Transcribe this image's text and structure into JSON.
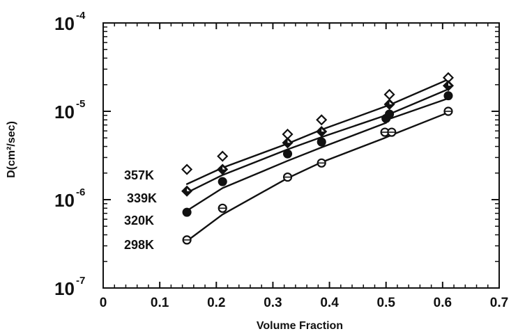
{
  "chart_data": {
    "type": "scatter",
    "xlabel": "Volume Fraction",
    "ylabel": "D(cm²/sec)",
    "xlim": [
      0,
      0.7
    ],
    "ylim": [
      1e-07,
      0.0001
    ],
    "yscale": "log",
    "x_ticks": [
      "0",
      "0.1",
      "0.2",
      "0.3",
      "0.4",
      "0.5",
      "0.6",
      "0.7"
    ],
    "y_ticks": [
      {
        "base": "10",
        "exp": "-4",
        "value": 0.0001
      },
      {
        "base": "10",
        "exp": "-5",
        "value": 1e-05
      },
      {
        "base": "10",
        "exp": "-6",
        "value": 1e-06
      },
      {
        "base": "10",
        "exp": "-7",
        "value": 1e-07
      }
    ],
    "grid": false,
    "series": [
      {
        "name": "357K",
        "marker": "open-diamond",
        "points": [
          [
            0.148,
            2.2e-06
          ],
          [
            0.211,
            3.1e-06
          ],
          [
            0.326,
            5.5e-06
          ],
          [
            0.386,
            8e-06
          ],
          [
            0.506,
            1.55e-05
          ],
          [
            0.61,
            2.4e-05
          ]
        ],
        "fit": [
          1.5e-06,
          2.3e-06,
          4.3e-06,
          6.2e-06,
          1.18e-05,
          2.3e-05
        ]
      },
      {
        "name": "339K",
        "marker": "half-filled-diamond",
        "points": [
          [
            0.148,
            1.25e-06
          ],
          [
            0.211,
            2.2e-06
          ],
          [
            0.326,
            4.4e-06
          ],
          [
            0.386,
            5.9e-06
          ],
          [
            0.506,
            1.2e-05
          ],
          [
            0.61,
            1.95e-05
          ]
        ],
        "fit": [
          1.2e-06,
          1.9e-06,
          3.7e-06,
          5.1e-06,
          9.3e-06,
          1.78e-05
        ]
      },
      {
        "name": "320K",
        "marker": "filled-circle",
        "points": [
          [
            0.148,
            7.2e-07
          ],
          [
            0.211,
            1.6e-06
          ],
          [
            0.326,
            3.3e-06
          ],
          [
            0.386,
            4.5e-06
          ],
          [
            0.5,
            8.3e-06
          ],
          [
            0.506,
            9.3e-06
          ],
          [
            0.61,
            1.5e-05
          ]
        ],
        "fit": [
          7.5e-07,
          1.35e-06,
          2.75e-06,
          3.9e-06,
          7.4e-06,
          8.2e-06,
          1.4e-05
        ]
      },
      {
        "name": "298K",
        "marker": "crossed-circle",
        "points": [
          [
            0.148,
            3.5e-07
          ],
          [
            0.211,
            8e-07
          ],
          [
            0.326,
            1.8e-06
          ],
          [
            0.386,
            2.6e-06
          ],
          [
            0.498,
            5.8e-06
          ],
          [
            0.51,
            5.8e-06
          ],
          [
            0.61,
            1e-05
          ]
        ],
        "fit": [
          3.4e-07,
          6.8e-07,
          1.75e-06,
          2.65e-06,
          5e-06,
          5.4e-06,
          9.7e-06
        ]
      }
    ]
  }
}
